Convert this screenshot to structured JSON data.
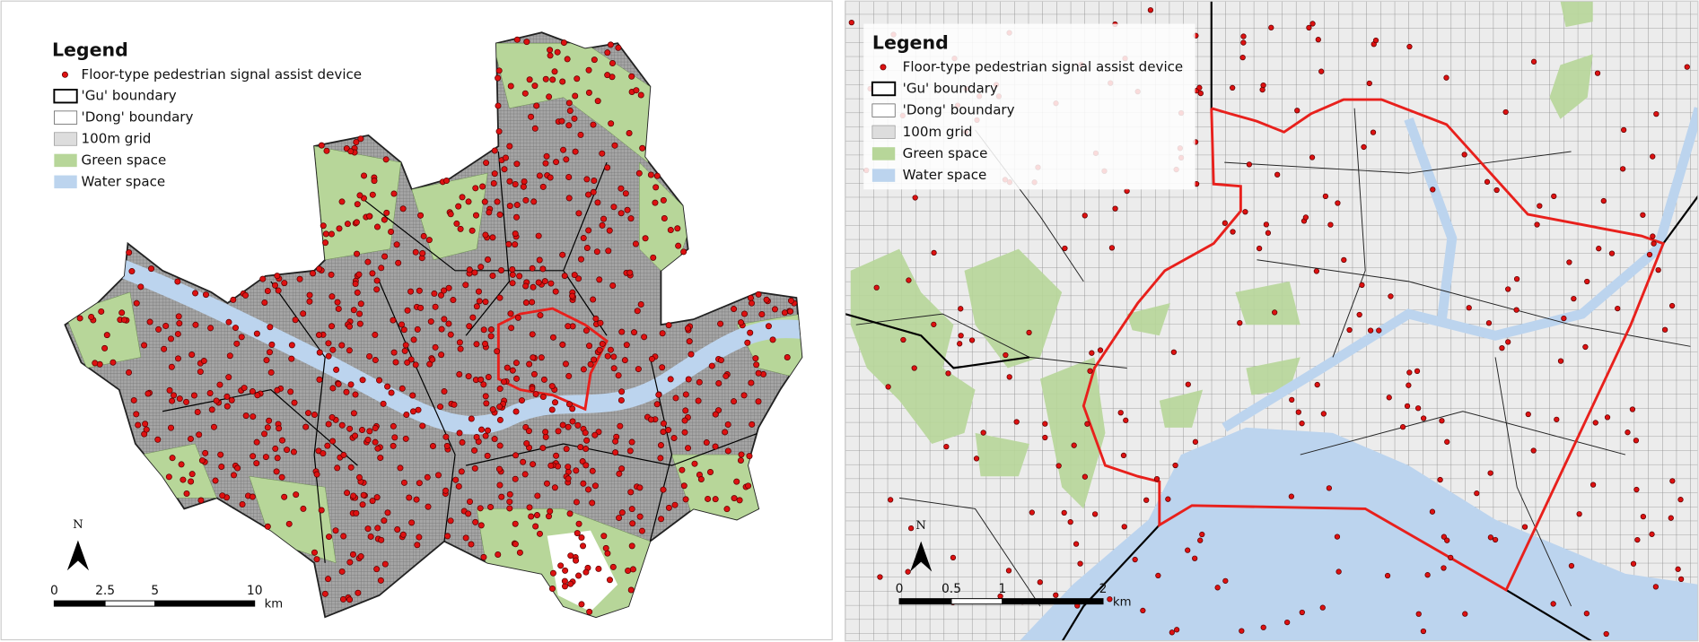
{
  "panels": [
    {
      "legend": {
        "title": "Legend",
        "items": [
          "Floor-type pedestrian signal assist device",
          "'Gu' boundary",
          "'Dong' boundary",
          "100m grid",
          "Green space",
          "Water space"
        ]
      },
      "north": "N",
      "scale_bar": {
        "labels": [
          "0",
          "2.5",
          "5",
          "10"
        ],
        "unit": "km"
      }
    },
    {
      "legend": {
        "title": "Legend",
        "items": [
          "Floor-type pedestrian signal assist device",
          "'Gu' boundary",
          "'Dong' boundary",
          "100m grid",
          "Green space",
          "Water space"
        ]
      },
      "north": "N",
      "scale_bar": {
        "labels": [
          "0",
          "0.5",
          "1",
          "2"
        ],
        "unit": "km"
      }
    }
  ]
}
